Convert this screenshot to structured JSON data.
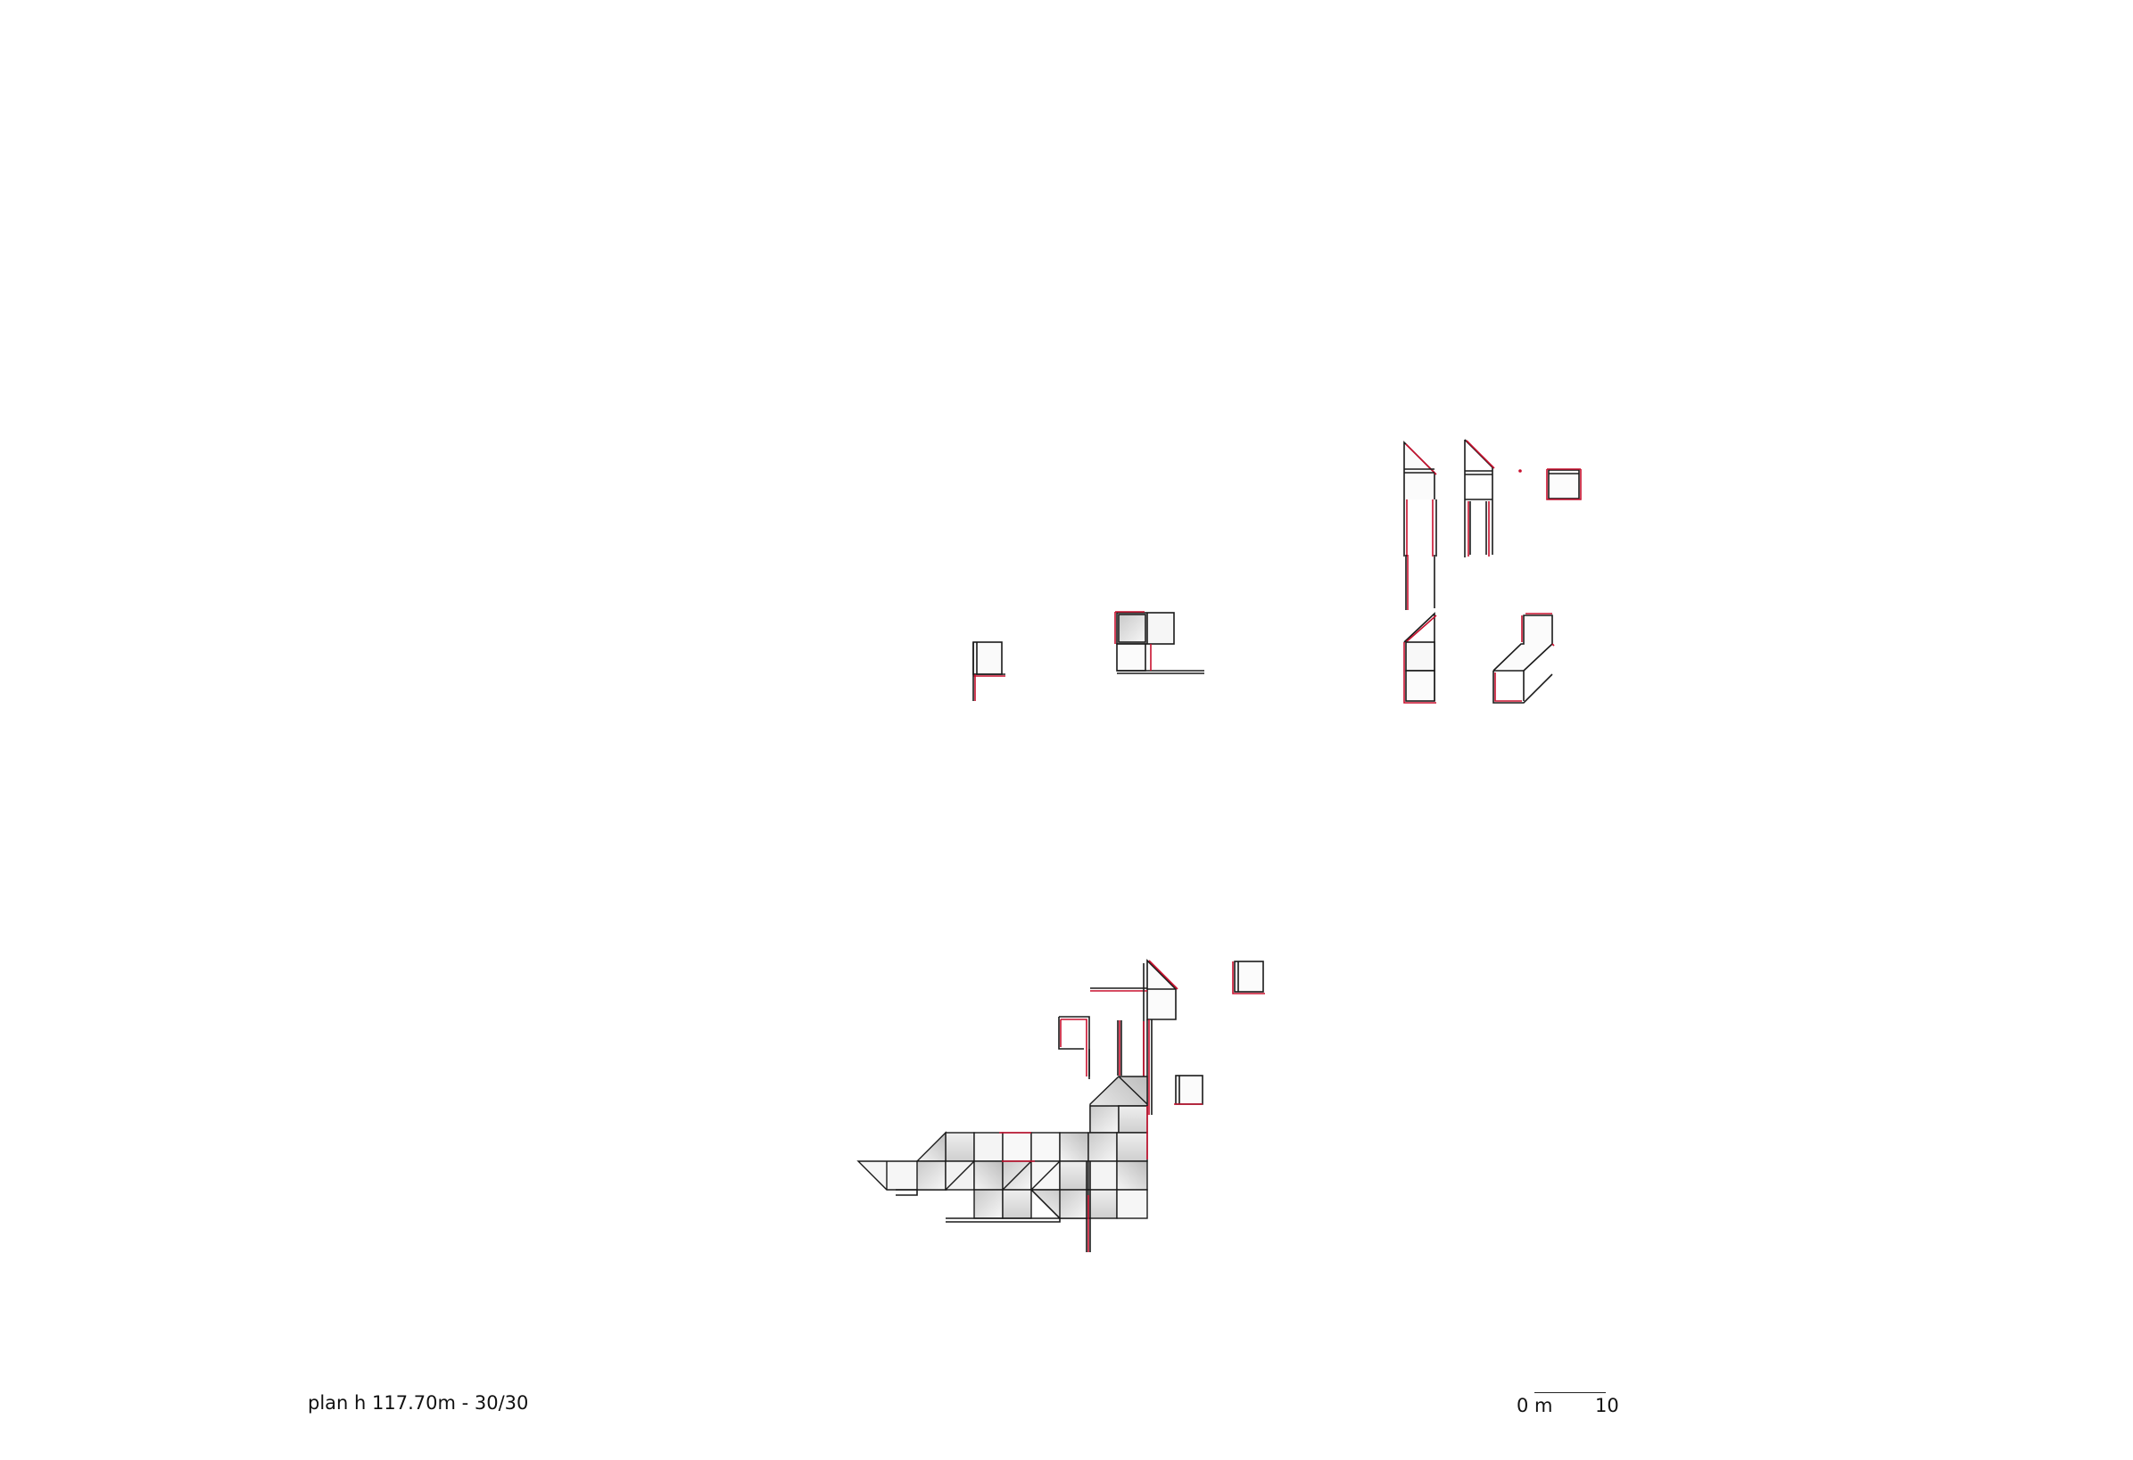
{
  "caption": "plan h 117.70m - 30/30",
  "scale_bar": {
    "start_label": "0 m",
    "end_label": "10"
  },
  "colors": {
    "cut_line": "#c8102e",
    "outline": "#1a1a1a",
    "fill_light": "#f2f2f2",
    "fill_dark": "#b8b8b8"
  }
}
